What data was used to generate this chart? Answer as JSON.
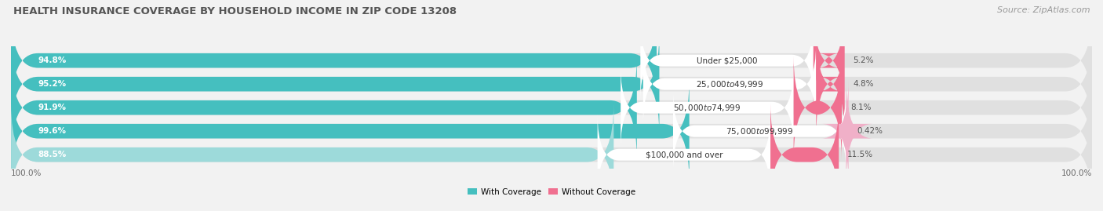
{
  "title": "HEALTH INSURANCE COVERAGE BY HOUSEHOLD INCOME IN ZIP CODE 13208",
  "source": "Source: ZipAtlas.com",
  "categories": [
    "Under $25,000",
    "$25,000 to $49,999",
    "$50,000 to $74,999",
    "$75,000 to $99,999",
    "$100,000 and over"
  ],
  "with_coverage": [
    94.8,
    95.2,
    91.9,
    99.6,
    88.5
  ],
  "without_coverage": [
    5.2,
    4.8,
    8.1,
    0.42,
    11.5
  ],
  "coverage_colors": [
    "#45bfbf",
    "#45bfbf",
    "#45bfbf",
    "#45bfbf",
    "#9ddada"
  ],
  "no_coverage_colors": [
    "#f07090",
    "#f07090",
    "#f07090",
    "#f0b0c8",
    "#f07090"
  ],
  "label_color_coverage": "#ffffff",
  "label_color_no_coverage": "#555555",
  "bg_color": "#f2f2f2",
  "bar_bg_color": "#e0e0e0",
  "title_fontsize": 9.5,
  "source_fontsize": 8,
  "bar_label_fontsize": 7.5,
  "category_label_fontsize": 7.5,
  "tick_fontsize": 7.5,
  "legend_labels": [
    "With Coverage",
    "Without Coverage"
  ],
  "bottom_left_label": "100.0%",
  "bottom_right_label": "100.0%",
  "coverage_legend_color": "#45bfbf",
  "no_coverage_legend_color": "#f07090"
}
